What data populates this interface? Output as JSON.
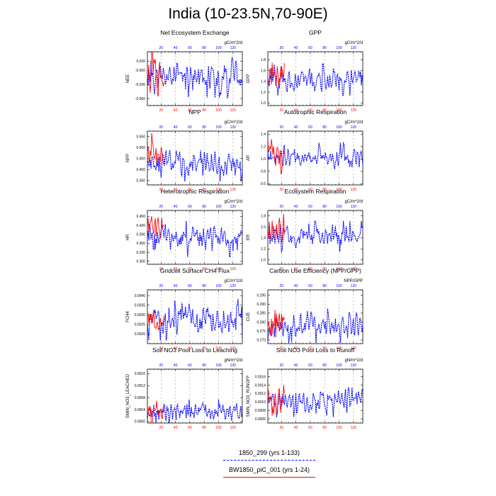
{
  "title": "India (10-23.5N,70-90E)",
  "colors": {
    "series1": "#0000ff",
    "series2": "#ff0000"
  },
  "legend": [
    {
      "label": "1850_299 (yrs 1-133)",
      "color": "#0000ff",
      "style": "dashed"
    },
    {
      "label": "BW1850_piC_001 (yrs 1-24)",
      "color": "#ff0000",
      "style": "solid"
    }
  ],
  "chart_data": [
    {
      "type": "line",
      "title": "Net Ecosystem Exchange",
      "ylabel": "NEE",
      "units": "gC/m^2/d",
      "ylim": [
        -0.075,
        0.04
      ],
      "yticks": [
        -0.06,
        -0.03,
        0.0,
        0.02
      ],
      "ytick_labels": [
        "-0.060",
        "-0.030",
        "-0.000",
        "0.020"
      ],
      "series": [
        {
          "mean": -0.015,
          "amp": 0.018,
          "seed": 11
        },
        {
          "mean": -0.02,
          "amp": 0.025,
          "seed": 12
        }
      ]
    },
    {
      "type": "line",
      "title": "GPP",
      "ylabel": "GPP",
      "units": "gC/m^2/d",
      "ylim": [
        0.95,
        1.95
      ],
      "yticks": [
        1.0,
        1.2,
        1.4,
        1.6,
        1.8
      ],
      "ytick_labels": [
        "1.0",
        "1.2",
        "1.4",
        "1.6",
        "1.8"
      ],
      "series": [
        {
          "mean": 1.45,
          "amp": 0.13,
          "seed": 21
        },
        {
          "mean": 1.52,
          "amp": 0.15,
          "seed": 22
        }
      ]
    },
    {
      "type": "line",
      "title": "NPP",
      "ylabel": "NPP",
      "units": "gC/m^2/d",
      "ylim": [
        0.33,
        0.575
      ],
      "yticks": [
        0.35,
        0.4,
        0.45,
        0.5,
        0.55
      ],
      "ytick_labels": [
        "0.350",
        "0.400",
        "0.450",
        "0.500",
        "0.550"
      ],
      "series": [
        {
          "mean": 0.43,
          "amp": 0.035,
          "seed": 31
        },
        {
          "mean": 0.47,
          "amp": 0.04,
          "seed": 32
        }
      ]
    },
    {
      "type": "line",
      "title": "Autotrophic Respiration",
      "ylabel": "AR",
      "units": "gC/m^2/d",
      "ylim": [
        0.58,
        1.45
      ],
      "yticks": [
        0.6,
        0.8,
        1.0,
        1.2,
        1.4
      ],
      "ytick_labels": [
        "0.6",
        "0.8",
        "1.0",
        "1.2",
        "1.4"
      ],
      "series": [
        {
          "mean": 1.02,
          "amp": 0.1,
          "seed": 41
        },
        {
          "mean": 1.05,
          "amp": 0.12,
          "seed": 42
        }
      ]
    },
    {
      "type": "line",
      "title": "Heterotrophic Respiration",
      "ylabel": "HR",
      "units": "gC/m^2/d",
      "ylim": [
        0.29,
        0.47
      ],
      "yticks": [
        0.3,
        0.33,
        0.36,
        0.39,
        0.42,
        0.45
      ],
      "ytick_labels": [
        "0.300",
        "0.330",
        "0.360",
        "0.390",
        "0.420",
        "0.450"
      ],
      "series": [
        {
          "mean": 0.375,
          "amp": 0.025,
          "seed": 51
        },
        {
          "mean": 0.415,
          "amp": 0.03,
          "seed": 52
        }
      ]
    },
    {
      "type": "line",
      "title": "Ecosystem Respiration",
      "ylabel": "ER",
      "units": "gC/m^2/d",
      "ylim": [
        0.92,
        1.9
      ],
      "yticks": [
        1.0,
        1.2,
        1.4,
        1.6,
        1.8
      ],
      "ytick_labels": [
        "1.0",
        "1.2",
        "1.4",
        "1.6",
        "1.8"
      ],
      "series": [
        {
          "mean": 1.42,
          "amp": 0.12,
          "seed": 61
        },
        {
          "mean": 1.5,
          "amp": 0.14,
          "seed": 62
        }
      ]
    },
    {
      "type": "line",
      "title": "Gridcell Surface CH4 Flux",
      "ylabel": "FCH4",
      "units": "gC/m^2/d",
      "ylim": [
        0.0015,
        0.0043
      ],
      "yticks": [
        0.002,
        0.0025,
        0.003,
        0.0035,
        0.004
      ],
      "ytick_labels": [
        "0.0020",
        "0.0025",
        "0.0030",
        "0.0035",
        "0.0040"
      ],
      "series": [
        {
          "mean": 0.00275,
          "amp": 0.00045,
          "seed": 71
        },
        {
          "mean": 0.0026,
          "amp": 0.0004,
          "seed": 72
        }
      ]
    },
    {
      "type": "line",
      "title": "Carbon Use Efficiency (NPP/GPP)",
      "ylabel": "CUE",
      "units": "NPP/GPP",
      "ylim": [
        0.268,
        0.298
      ],
      "yticks": [
        0.27,
        0.275,
        0.28,
        0.285,
        0.29,
        0.295
      ],
      "ytick_labels": [
        "0.270",
        "0.275",
        "0.280",
        "0.285",
        "0.290",
        "0.295"
      ],
      "series": [
        {
          "mean": 0.278,
          "amp": 0.004,
          "seed": 81
        },
        {
          "mean": 0.279,
          "amp": 0.004,
          "seed": 82
        }
      ]
    },
    {
      "type": "line",
      "title": "Soil NO3 Pool Loss to Leaching",
      "ylabel": "SMIN_NO3_LEACHED",
      "units": "gN/m^2/d",
      "ylim": [
        -5e-05,
        0.00175
      ],
      "yticks": [
        0.0,
        0.0004,
        0.0008,
        0.0012,
        0.0016
      ],
      "ytick_labels": [
        "0.0000",
        "0.0004",
        "0.0008",
        "0.0012",
        "0.0016"
      ],
      "series": [
        {
          "mean": 0.0003,
          "amp": 0.00018,
          "seed": 91
        },
        {
          "mean": 0.00032,
          "amp": 0.0002,
          "seed": 92
        }
      ]
    },
    {
      "type": "line",
      "title": "Soil NO3 Pool Loss to Runoff",
      "ylabel": "SMIN_NO3_RUNOFF",
      "units": "gN/m^2/d",
      "ylim": [
        0.0005,
        0.00178
      ],
      "yticks": [
        0.0006,
        0.0008,
        0.001,
        0.0012,
        0.0014,
        0.0016
      ],
      "ytick_labels": [
        "0.0006",
        "0.0008",
        "0.0010",
        "0.0012",
        "0.0014",
        "0.0016"
      ],
      "series": [
        {
          "mean": 0.00105,
          "amp": 0.00017,
          "seed": 101
        },
        {
          "mean": 0.001,
          "amp": 0.0002,
          "seed": 102
        }
      ]
    }
  ],
  "axes": {
    "top_xlim": [
      1,
      133
    ],
    "top_xticks": [
      20,
      40,
      60,
      80,
      100,
      120
    ],
    "bottom_xlim": [
      1,
      24
    ],
    "bottom_xticks": [
      20,
      40,
      60,
      80,
      100,
      120
    ],
    "series_lengths": [
      133,
      24
    ]
  }
}
